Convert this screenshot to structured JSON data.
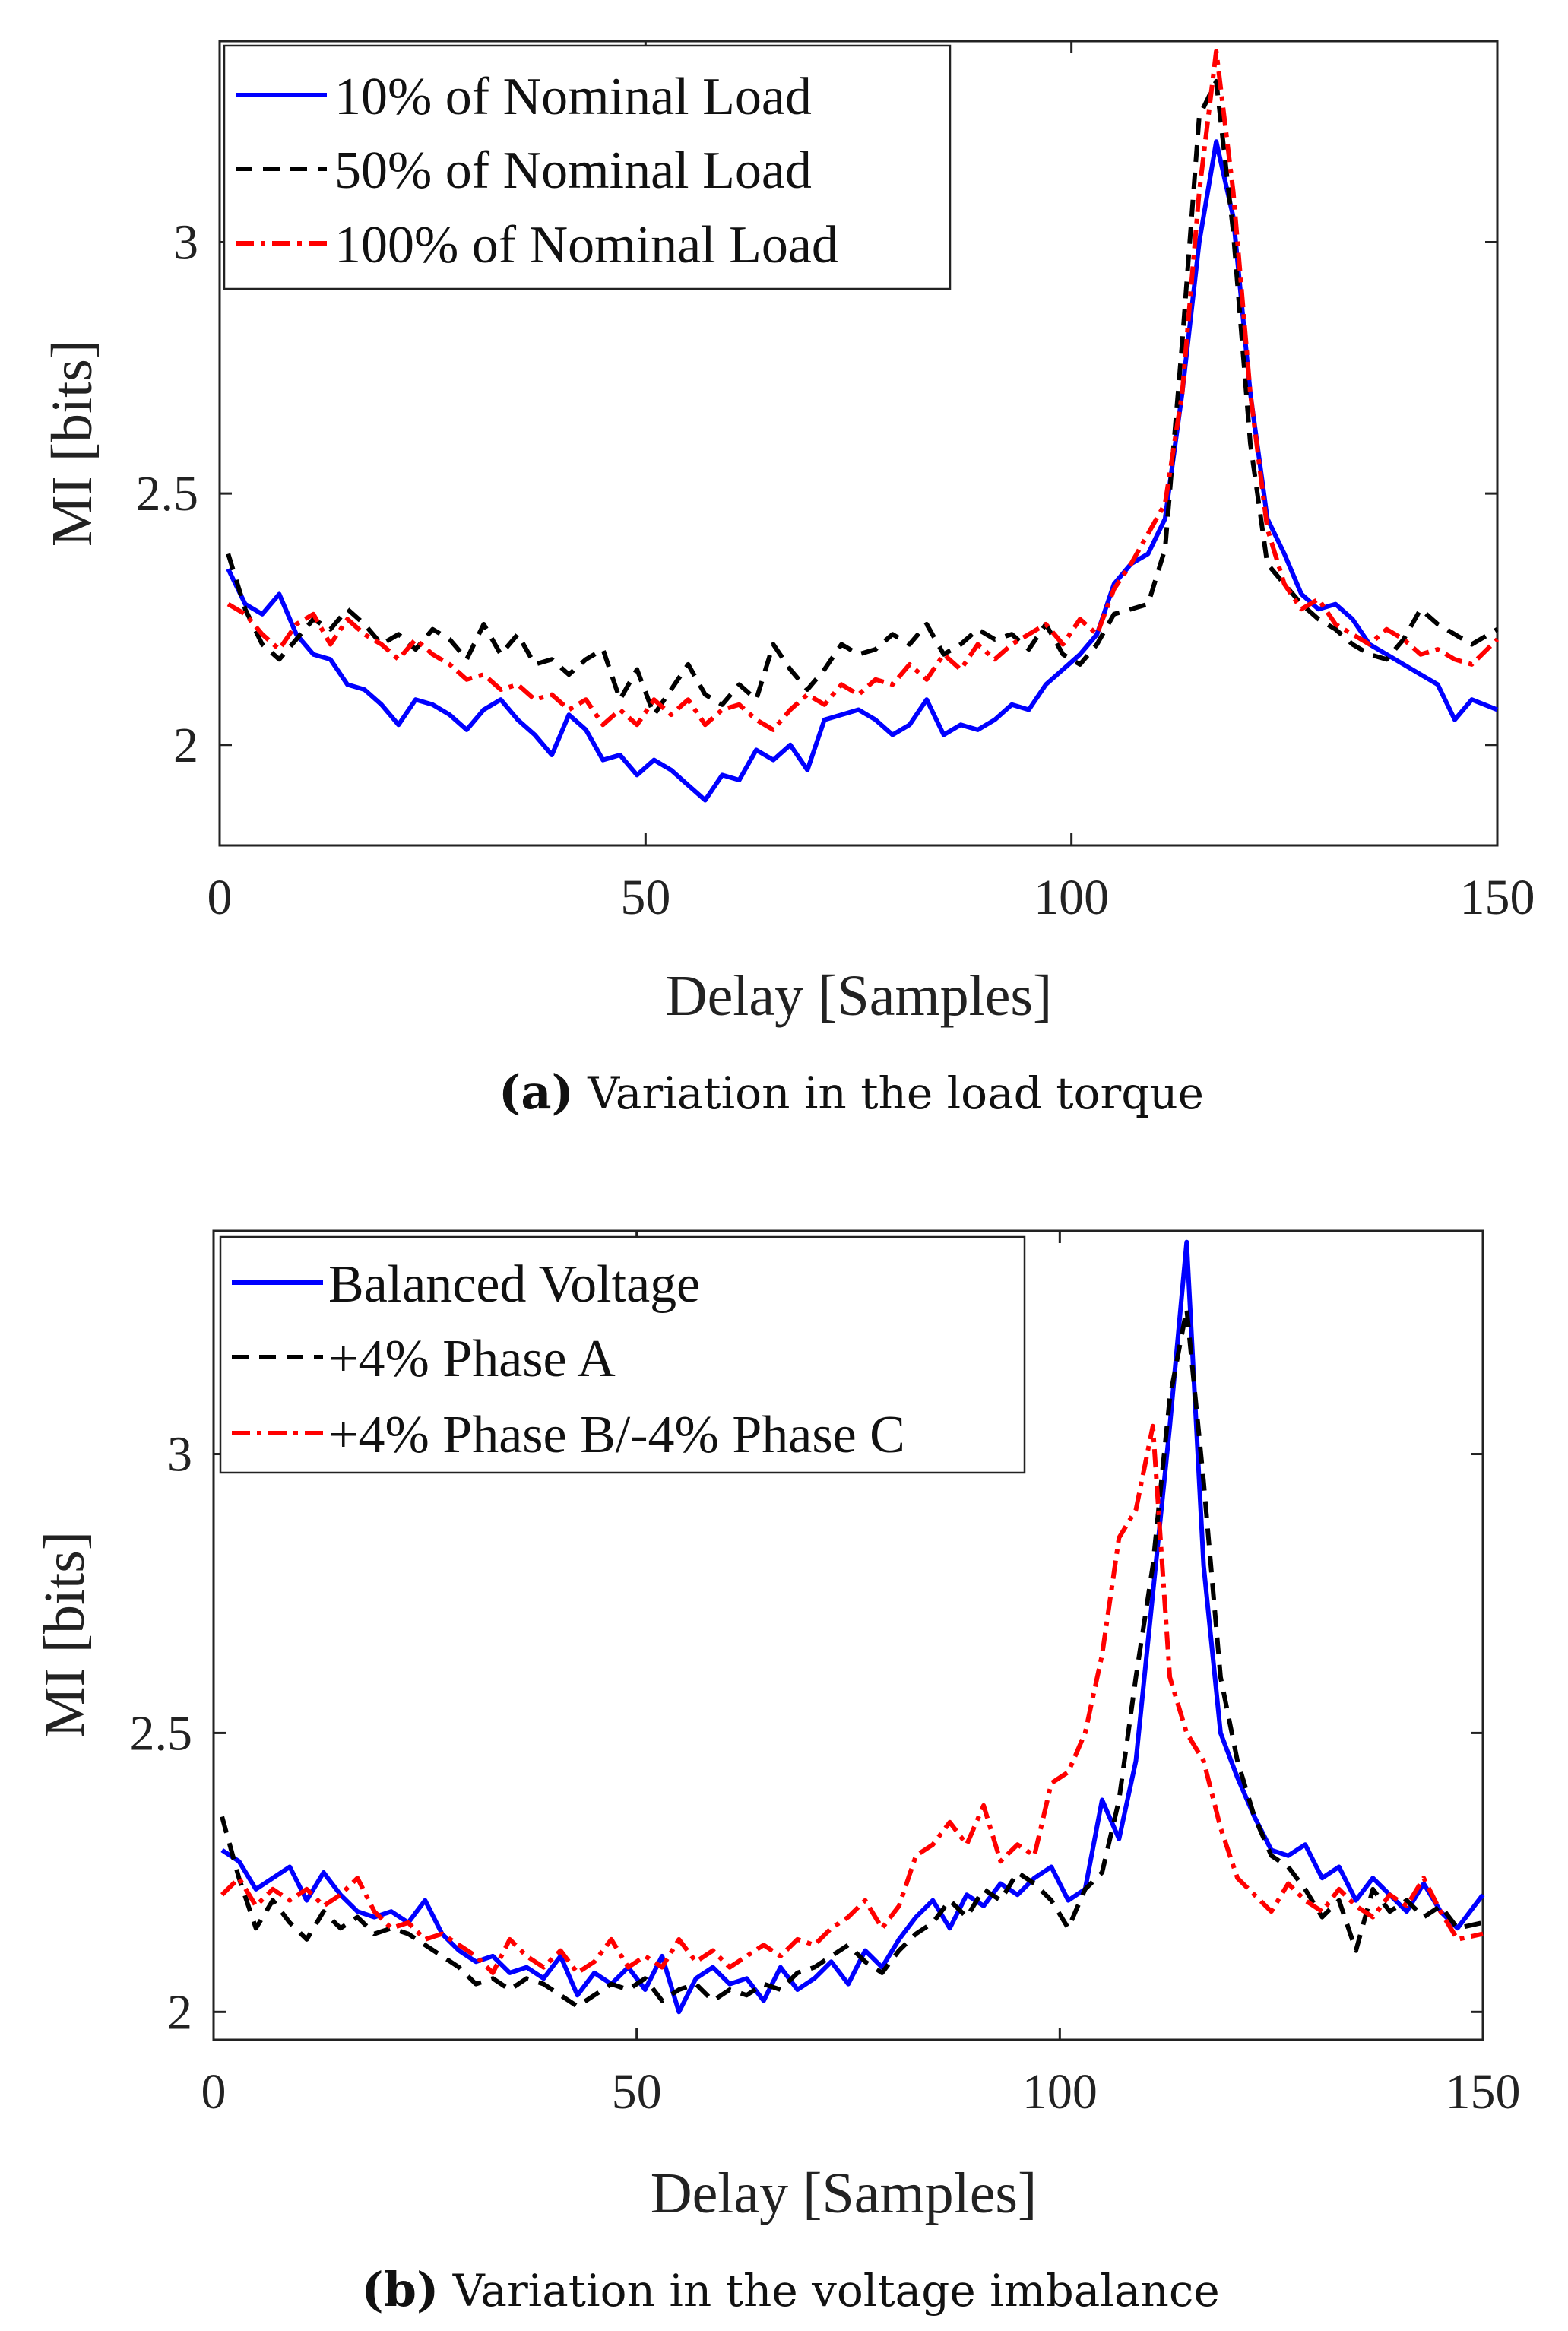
{
  "chart_data": [
    {
      "type": "line",
      "caption_tag": "a",
      "caption_text": "Variation in the load torque",
      "xlabel": "Delay [Samples]",
      "ylabel": "MI [bits]",
      "xlim": [
        0,
        150
      ],
      "ylim": [
        1.8,
        3.4
      ],
      "xticks": [
        0,
        50,
        100,
        150
      ],
      "yticks": [
        2,
        2.5,
        3
      ],
      "ytick_labels": [
        "2",
        "2.5",
        "3"
      ],
      "legend_position": "top-left",
      "grid": false,
      "series": [
        {
          "name": "10% of Nominal Load",
          "color": "#0000ff",
          "dash": "solid",
          "x": [
            1,
            3,
            5,
            7,
            9,
            11,
            13,
            15,
            17,
            19,
            21,
            23,
            25,
            27,
            29,
            31,
            33,
            35,
            37,
            39,
            41,
            43,
            45,
            47,
            49,
            51,
            53,
            55,
            57,
            59,
            61,
            63,
            65,
            67,
            69,
            71,
            73,
            75,
            77,
            79,
            81,
            83,
            85,
            87,
            89,
            91,
            93,
            95,
            97,
            99,
            101,
            103,
            105,
            107,
            109,
            111,
            113,
            115,
            117,
            119,
            121,
            123,
            125,
            127,
            129,
            131,
            133,
            135,
            137,
            139,
            141,
            143,
            145,
            147,
            150
          ],
          "y": [
            2.35,
            2.28,
            2.26,
            2.3,
            2.22,
            2.18,
            2.17,
            2.12,
            2.11,
            2.08,
            2.04,
            2.09,
            2.08,
            2.06,
            2.03,
            2.07,
            2.09,
            2.05,
            2.02,
            1.98,
            2.06,
            2.03,
            1.97,
            1.98,
            1.94,
            1.97,
            1.95,
            1.92,
            1.89,
            1.94,
            1.93,
            1.99,
            1.97,
            2.0,
            1.95,
            2.05,
            2.06,
            2.07,
            2.05,
            2.02,
            2.04,
            2.09,
            2.02,
            2.04,
            2.03,
            2.05,
            2.08,
            2.07,
            2.12,
            2.15,
            2.18,
            2.22,
            2.32,
            2.36,
            2.38,
            2.45,
            2.7,
            3.0,
            3.2,
            3.05,
            2.7,
            2.45,
            2.38,
            2.3,
            2.27,
            2.28,
            2.25,
            2.2,
            2.18,
            2.16,
            2.14,
            2.12,
            2.05,
            2.09,
            2.07
          ]
        },
        {
          "name": "50% of Nominal Load",
          "color": "#000000",
          "dash": "dashed",
          "x": [
            1,
            3,
            5,
            7,
            9,
            11,
            13,
            15,
            17,
            19,
            21,
            23,
            25,
            27,
            29,
            31,
            33,
            35,
            37,
            39,
            41,
            43,
            45,
            47,
            49,
            51,
            53,
            55,
            57,
            59,
            61,
            63,
            65,
            67,
            69,
            71,
            73,
            75,
            77,
            79,
            81,
            83,
            85,
            87,
            89,
            91,
            93,
            95,
            97,
            99,
            101,
            103,
            105,
            107,
            109,
            111,
            113,
            115,
            117,
            119,
            121,
            123,
            125,
            127,
            129,
            131,
            133,
            135,
            137,
            139,
            141,
            143,
            145,
            147,
            150
          ],
          "y": [
            2.38,
            2.27,
            2.2,
            2.17,
            2.21,
            2.25,
            2.23,
            2.27,
            2.24,
            2.2,
            2.22,
            2.19,
            2.23,
            2.21,
            2.17,
            2.24,
            2.18,
            2.22,
            2.16,
            2.17,
            2.14,
            2.17,
            2.19,
            2.09,
            2.15,
            2.06,
            2.11,
            2.16,
            2.1,
            2.08,
            2.12,
            2.09,
            2.2,
            2.15,
            2.11,
            2.15,
            2.2,
            2.18,
            2.19,
            2.22,
            2.2,
            2.24,
            2.18,
            2.2,
            2.23,
            2.21,
            2.22,
            2.19,
            2.24,
            2.18,
            2.16,
            2.2,
            2.26,
            2.27,
            2.28,
            2.39,
            2.8,
            3.25,
            3.32,
            3.02,
            2.6,
            2.36,
            2.32,
            2.28,
            2.25,
            2.23,
            2.2,
            2.18,
            2.17,
            2.21,
            2.27,
            2.24,
            2.22,
            2.2,
            2.23
          ]
        },
        {
          "name": "100% of Nominal Load",
          "color": "#ff0000",
          "dash": "dashdot",
          "x": [
            1,
            3,
            5,
            7,
            9,
            11,
            13,
            15,
            17,
            19,
            21,
            23,
            25,
            27,
            29,
            31,
            33,
            35,
            37,
            39,
            41,
            43,
            45,
            47,
            49,
            51,
            53,
            55,
            57,
            59,
            61,
            63,
            65,
            67,
            69,
            71,
            73,
            75,
            77,
            79,
            81,
            83,
            85,
            87,
            89,
            91,
            93,
            95,
            97,
            99,
            101,
            103,
            105,
            107,
            109,
            111,
            113,
            115,
            117,
            119,
            121,
            123,
            125,
            127,
            129,
            131,
            133,
            135,
            137,
            139,
            141,
            143,
            145,
            147,
            150
          ],
          "y": [
            2.28,
            2.26,
            2.22,
            2.19,
            2.24,
            2.26,
            2.2,
            2.25,
            2.22,
            2.2,
            2.17,
            2.21,
            2.18,
            2.16,
            2.13,
            2.14,
            2.11,
            2.12,
            2.09,
            2.1,
            2.07,
            2.09,
            2.04,
            2.07,
            2.04,
            2.09,
            2.06,
            2.09,
            2.04,
            2.07,
            2.08,
            2.05,
            2.03,
            2.07,
            2.1,
            2.08,
            2.12,
            2.1,
            2.13,
            2.12,
            2.16,
            2.13,
            2.18,
            2.15,
            2.2,
            2.17,
            2.2,
            2.22,
            2.24,
            2.2,
            2.25,
            2.22,
            2.31,
            2.36,
            2.42,
            2.48,
            2.7,
            3.1,
            3.38,
            3.1,
            2.7,
            2.43,
            2.32,
            2.27,
            2.29,
            2.24,
            2.22,
            2.2,
            2.23,
            2.21,
            2.18,
            2.19,
            2.17,
            2.16,
            2.21
          ]
        }
      ]
    },
    {
      "type": "line",
      "caption_tag": "b",
      "caption_text": "Variation in the voltage imbalance",
      "xlabel": "Delay [Samples]",
      "ylabel": "MI [bits]",
      "xlim": [
        0,
        150
      ],
      "ylim": [
        1.95,
        3.4
      ],
      "xticks": [
        0,
        50,
        100,
        150
      ],
      "yticks": [
        2,
        2.5,
        3
      ],
      "ytick_labels": [
        "2",
        "2.5",
        "3"
      ],
      "legend_position": "top-left",
      "grid": false,
      "series": [
        {
          "name": "Balanced Voltage",
          "color": "#0000ff",
          "dash": "solid",
          "x": [
            1,
            3,
            5,
            7,
            9,
            11,
            13,
            15,
            17,
            19,
            21,
            23,
            25,
            27,
            29,
            31,
            33,
            35,
            37,
            39,
            41,
            43,
            45,
            47,
            49,
            51,
            53,
            55,
            57,
            59,
            61,
            63,
            65,
            67,
            69,
            71,
            73,
            75,
            77,
            79,
            81,
            83,
            85,
            87,
            89,
            91,
            93,
            95,
            97,
            99,
            101,
            103,
            105,
            107,
            109,
            111,
            113,
            115,
            117,
            119,
            121,
            123,
            125,
            127,
            129,
            131,
            133,
            135,
            137,
            139,
            141,
            143,
            145,
            147,
            150
          ],
          "y": [
            2.29,
            2.27,
            2.22,
            2.24,
            2.26,
            2.2,
            2.25,
            2.21,
            2.18,
            2.17,
            2.18,
            2.16,
            2.2,
            2.14,
            2.11,
            2.09,
            2.1,
            2.07,
            2.08,
            2.06,
            2.1,
            2.03,
            2.07,
            2.05,
            2.08,
            2.04,
            2.1,
            2.0,
            2.06,
            2.08,
            2.05,
            2.06,
            2.02,
            2.08,
            2.04,
            2.06,
            2.09,
            2.05,
            2.11,
            2.08,
            2.13,
            2.17,
            2.2,
            2.15,
            2.21,
            2.19,
            2.23,
            2.21,
            2.24,
            2.26,
            2.2,
            2.22,
            2.38,
            2.31,
            2.45,
            2.75,
            3.05,
            3.38,
            2.8,
            2.5,
            2.42,
            2.35,
            2.29,
            2.28,
            2.3,
            2.24,
            2.26,
            2.2,
            2.24,
            2.21,
            2.18,
            2.23,
            2.18,
            2.15,
            2.21
          ]
        },
        {
          "name": "+4% Phase A",
          "color": "#000000",
          "dash": "dashed",
          "x": [
            1,
            3,
            5,
            7,
            9,
            11,
            13,
            15,
            17,
            19,
            21,
            23,
            25,
            27,
            29,
            31,
            33,
            35,
            37,
            39,
            41,
            43,
            45,
            47,
            49,
            51,
            53,
            55,
            57,
            59,
            61,
            63,
            65,
            67,
            69,
            71,
            73,
            75,
            77,
            79,
            81,
            83,
            85,
            87,
            89,
            91,
            93,
            95,
            97,
            99,
            101,
            103,
            105,
            107,
            109,
            111,
            113,
            115,
            117,
            119,
            121,
            123,
            125,
            127,
            129,
            131,
            133,
            135,
            137,
            139,
            141,
            143,
            145,
            147,
            150
          ],
          "y": [
            2.35,
            2.24,
            2.15,
            2.2,
            2.16,
            2.13,
            2.18,
            2.15,
            2.17,
            2.14,
            2.15,
            2.14,
            2.12,
            2.1,
            2.08,
            2.05,
            2.06,
            2.04,
            2.06,
            2.05,
            2.03,
            2.01,
            2.03,
            2.05,
            2.04,
            2.06,
            2.02,
            2.04,
            2.05,
            2.02,
            2.04,
            2.03,
            2.05,
            2.04,
            2.07,
            2.08,
            2.1,
            2.12,
            2.09,
            2.07,
            2.11,
            2.14,
            2.16,
            2.2,
            2.17,
            2.22,
            2.2,
            2.25,
            2.23,
            2.2,
            2.15,
            2.22,
            2.25,
            2.38,
            2.6,
            2.8,
            3.1,
            3.26,
            2.95,
            2.6,
            2.45,
            2.35,
            2.28,
            2.26,
            2.22,
            2.17,
            2.2,
            2.11,
            2.22,
            2.18,
            2.2,
            2.17,
            2.19,
            2.15,
            2.16
          ]
        },
        {
          "name": "+4% Phase B/-4% Phase C",
          "color": "#ff0000",
          "dash": "dashdot",
          "x": [
            1,
            3,
            5,
            7,
            9,
            11,
            13,
            15,
            17,
            19,
            21,
            23,
            25,
            27,
            29,
            31,
            33,
            35,
            37,
            39,
            41,
            43,
            45,
            47,
            49,
            51,
            53,
            55,
            57,
            59,
            61,
            63,
            65,
            67,
            69,
            71,
            73,
            75,
            77,
            79,
            81,
            83,
            85,
            87,
            89,
            91,
            93,
            95,
            97,
            99,
            101,
            103,
            105,
            107,
            109,
            111,
            113,
            115,
            117,
            119,
            121,
            123,
            125,
            127,
            129,
            131,
            133,
            135,
            137,
            139,
            141,
            143,
            145,
            147,
            150
          ],
          "y": [
            2.21,
            2.24,
            2.19,
            2.22,
            2.2,
            2.22,
            2.19,
            2.21,
            2.24,
            2.18,
            2.15,
            2.16,
            2.13,
            2.14,
            2.12,
            2.1,
            2.07,
            2.13,
            2.1,
            2.08,
            2.11,
            2.07,
            2.09,
            2.13,
            2.08,
            2.1,
            2.08,
            2.13,
            2.09,
            2.11,
            2.08,
            2.1,
            2.12,
            2.1,
            2.13,
            2.12,
            2.15,
            2.17,
            2.2,
            2.15,
            2.19,
            2.28,
            2.3,
            2.34,
            2.3,
            2.37,
            2.27,
            2.3,
            2.28,
            2.41,
            2.43,
            2.5,
            2.64,
            2.85,
            2.9,
            3.05,
            2.6,
            2.5,
            2.45,
            2.33,
            2.24,
            2.21,
            2.18,
            2.23,
            2.2,
            2.18,
            2.22,
            2.19,
            2.17,
            2.21,
            2.19,
            2.24,
            2.18,
            2.13,
            2.14
          ]
        }
      ]
    }
  ]
}
